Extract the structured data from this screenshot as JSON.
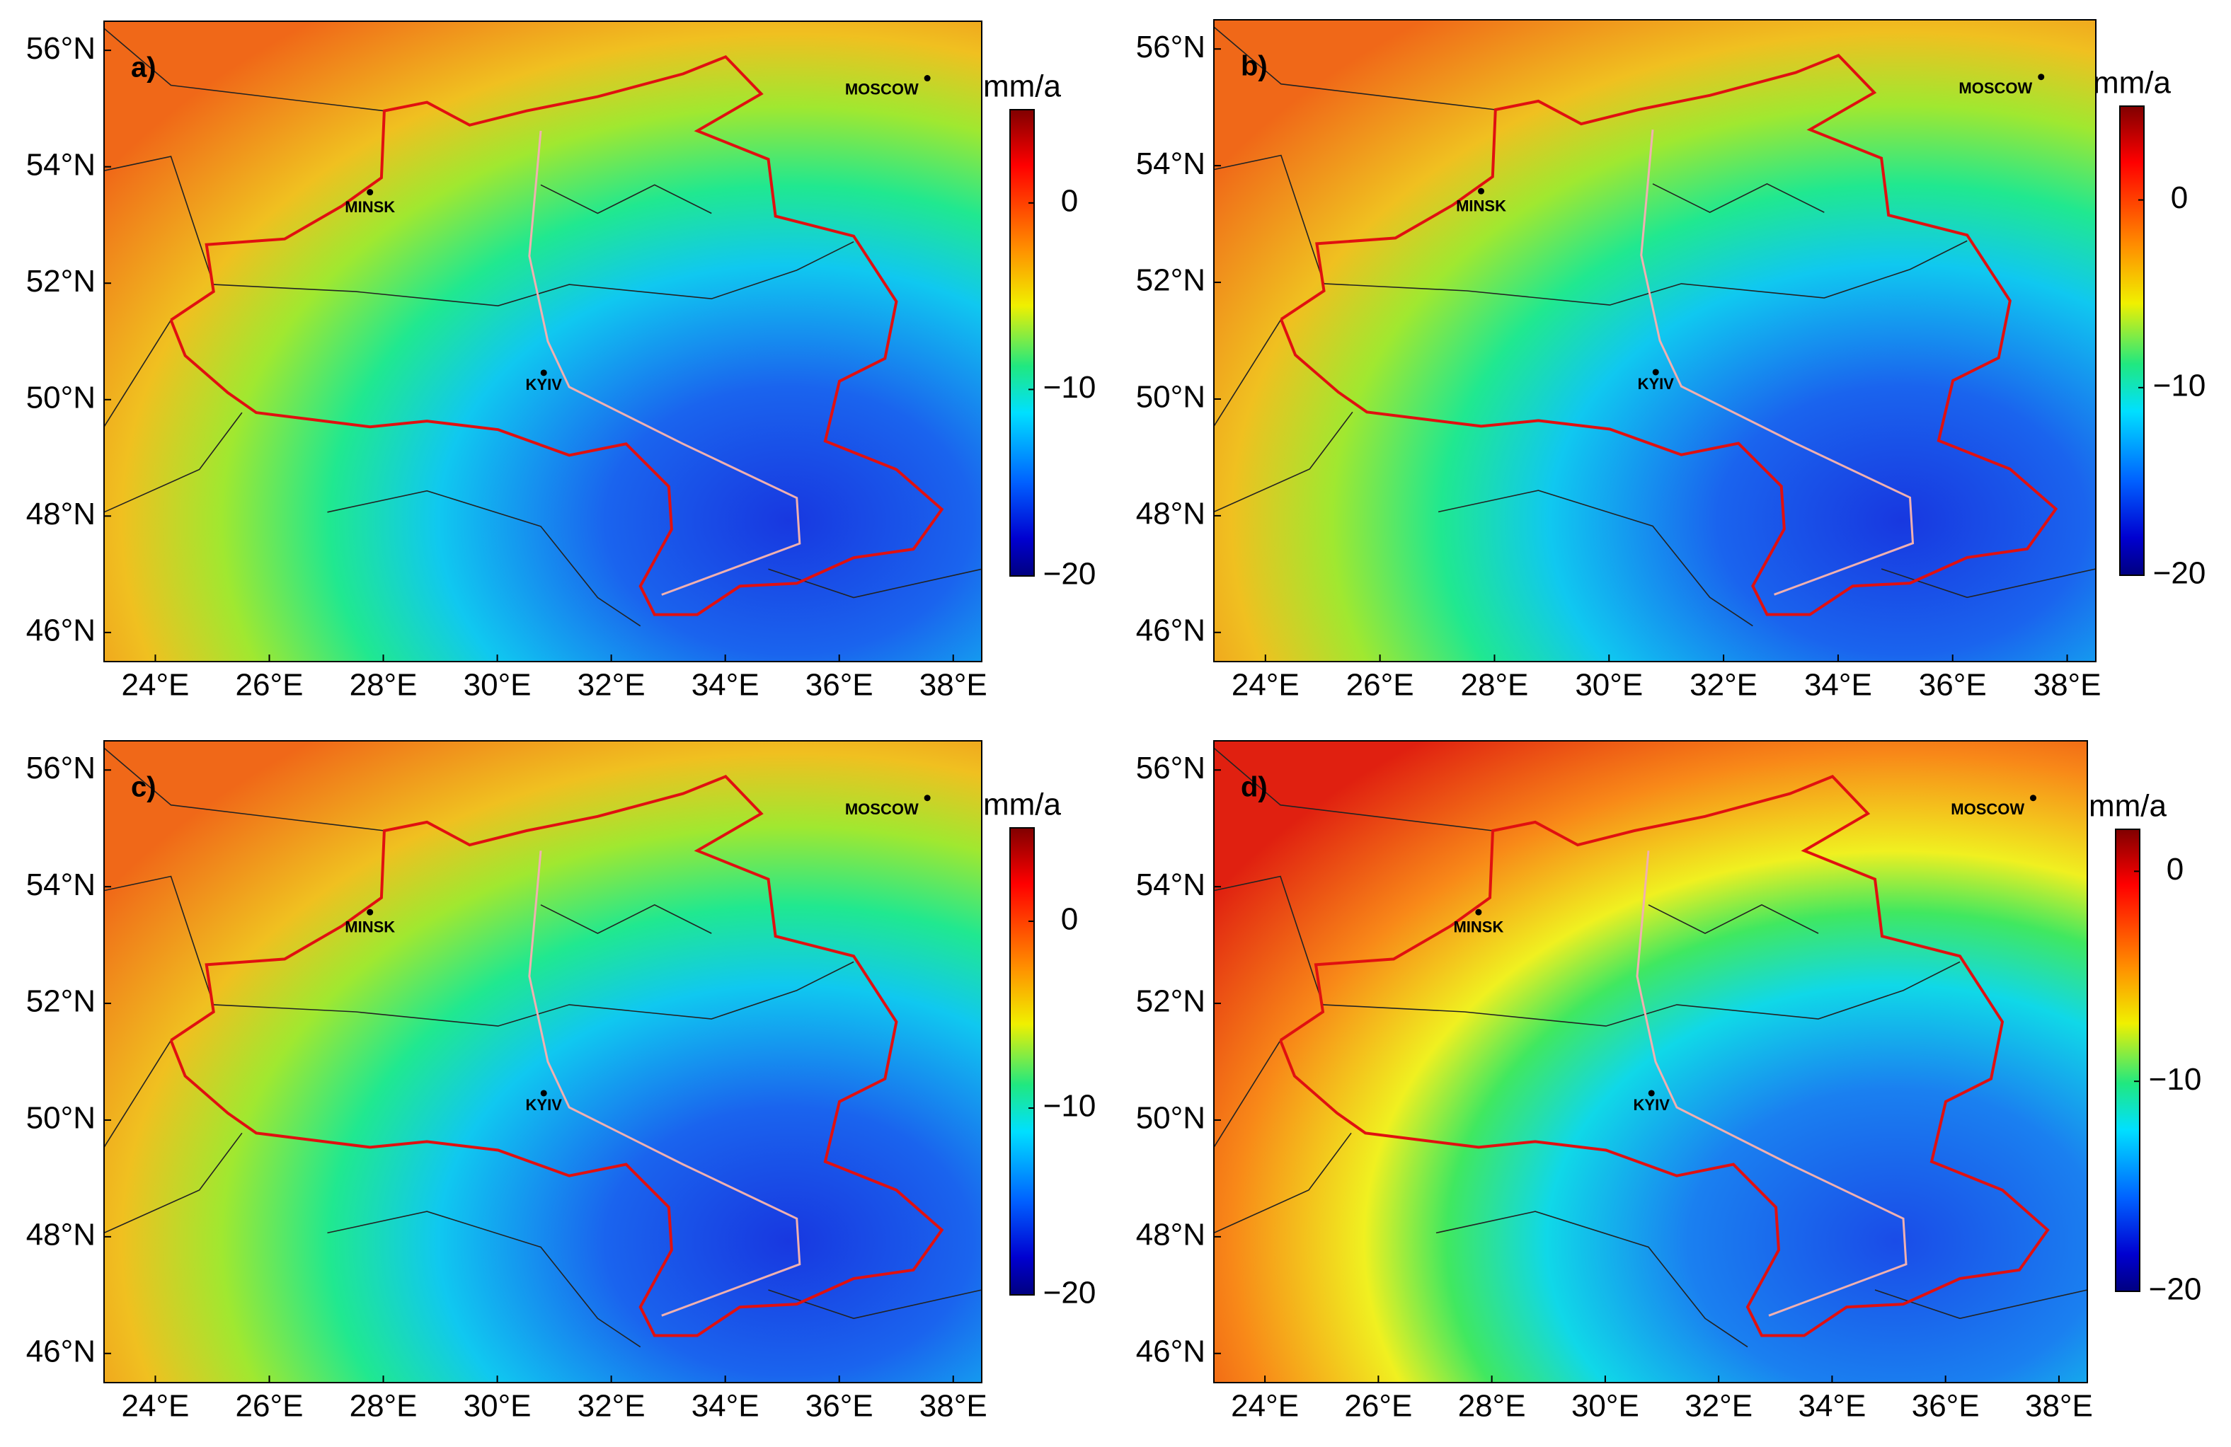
{
  "panels": [
    {
      "label": "a)",
      "xlim": [
        23.1,
        38.5
      ],
      "ylim": [
        45.5,
        56.5
      ],
      "lon_ticks": [
        {
          "value": 24,
          "label": "24°E"
        },
        {
          "value": 26,
          "label": "26°E"
        },
        {
          "value": 28,
          "label": "28°E"
        },
        {
          "value": 30,
          "label": "30°E"
        },
        {
          "value": 32,
          "label": "32°E"
        },
        {
          "value": 34,
          "label": "34°E"
        },
        {
          "value": 36,
          "label": "36°E"
        },
        {
          "value": 38,
          "label": "38°E"
        }
      ],
      "lat_ticks": [
        {
          "value": 46,
          "label": "46°N"
        },
        {
          "value": 48,
          "label": "48°N"
        },
        {
          "value": 50,
          "label": "50°N"
        },
        {
          "value": 52,
          "label": "52°N"
        },
        {
          "value": 54,
          "label": "54°N"
        },
        {
          "value": 56,
          "label": "56°N"
        }
      ],
      "colorbar": {
        "unit": "mm/a",
        "clim": [
          -20,
          5
        ],
        "ticks": [
          0,
          {
            "value": -10,
            "label": "−10"
          },
          {
            "value": -20,
            "label": "−20"
          }
        ]
      },
      "cities": [
        "MOSCOW",
        "MINSK",
        "KYIV"
      ]
    },
    {
      "label": "b)",
      "xlim": [
        23.1,
        38.5
      ],
      "ylim": [
        45.5,
        56.5
      ],
      "lon_ticks": [
        {
          "value": 24,
          "label": "24°E"
        },
        {
          "value": 26,
          "label": "26°E"
        },
        {
          "value": 28,
          "label": "28°E"
        },
        {
          "value": 30,
          "label": "30°E"
        },
        {
          "value": 32,
          "label": "32°E"
        },
        {
          "value": 34,
          "label": "34°E"
        },
        {
          "value": 36,
          "label": "36°E"
        },
        {
          "value": 38,
          "label": "38°E"
        }
      ],
      "lat_ticks": [
        {
          "value": 46,
          "label": "46°N"
        },
        {
          "value": 48,
          "label": "48°N"
        },
        {
          "value": 50,
          "label": "50°N"
        },
        {
          "value": 52,
          "label": "52°N"
        },
        {
          "value": 54,
          "label": "54°N"
        },
        {
          "value": 56,
          "label": "56°N"
        }
      ],
      "colorbar": {
        "unit": "mm/a",
        "clim": [
          -20,
          5
        ],
        "ticks": [
          0,
          {
            "value": -10,
            "label": "−10"
          },
          {
            "value": -20,
            "label": "−20"
          }
        ]
      },
      "cities": [
        "MOSCOW",
        "MINSK",
        "KYIV"
      ]
    },
    {
      "label": "c)",
      "xlim": [
        23.1,
        38.5
      ],
      "ylim": [
        45.5,
        56.5
      ],
      "lon_ticks": [
        {
          "value": 24,
          "label": "24°E"
        },
        {
          "value": 26,
          "label": "26°E"
        },
        {
          "value": 28,
          "label": "28°E"
        },
        {
          "value": 30,
          "label": "30°E"
        },
        {
          "value": 32,
          "label": "32°E"
        },
        {
          "value": 34,
          "label": "34°E"
        },
        {
          "value": 36,
          "label": "36°E"
        },
        {
          "value": 38,
          "label": "38°E"
        }
      ],
      "lat_ticks": [
        {
          "value": 46,
          "label": "46°N"
        },
        {
          "value": 48,
          "label": "48°N"
        },
        {
          "value": 50,
          "label": "50°N"
        },
        {
          "value": 52,
          "label": "52°N"
        },
        {
          "value": 54,
          "label": "54°N"
        },
        {
          "value": 56,
          "label": "56°N"
        }
      ],
      "colorbar": {
        "unit": "mm/a",
        "clim": [
          -20,
          5
        ],
        "ticks": [
          0,
          {
            "value": -10,
            "label": "−10"
          },
          {
            "value": -20,
            "label": "−20"
          }
        ]
      },
      "cities": [
        "MOSCOW",
        "MINSK",
        "KYIV"
      ]
    },
    {
      "label": "d)",
      "xlim": [
        23.1,
        38.5
      ],
      "ylim": [
        45.5,
        56.5
      ],
      "lon_ticks": [
        {
          "value": 24,
          "label": "24°E"
        },
        {
          "value": 26,
          "label": "26°E"
        },
        {
          "value": 28,
          "label": "28°E"
        },
        {
          "value": 30,
          "label": "30°E"
        },
        {
          "value": 32,
          "label": "32°E"
        },
        {
          "value": 34,
          "label": "34°E"
        },
        {
          "value": 36,
          "label": "36°E"
        },
        {
          "value": 38,
          "label": "38°E"
        }
      ],
      "lat_ticks": [
        {
          "value": 46,
          "label": "46°N"
        },
        {
          "value": 48,
          "label": "48°N"
        },
        {
          "value": 50,
          "label": "50°N"
        },
        {
          "value": 52,
          "label": "52°N"
        },
        {
          "value": 54,
          "label": "54°N"
        },
        {
          "value": 56,
          "label": "56°N"
        }
      ],
      "colorbar": {
        "unit": "mm/a",
        "clim": [
          -20,
          2
        ],
        "ticks": [
          0,
          {
            "value": -10,
            "label": "−10"
          },
          {
            "value": -20,
            "label": "−20"
          }
        ]
      },
      "cities": [
        "MOSCOW",
        "MINSK",
        "KYIV"
      ]
    }
  ]
}
